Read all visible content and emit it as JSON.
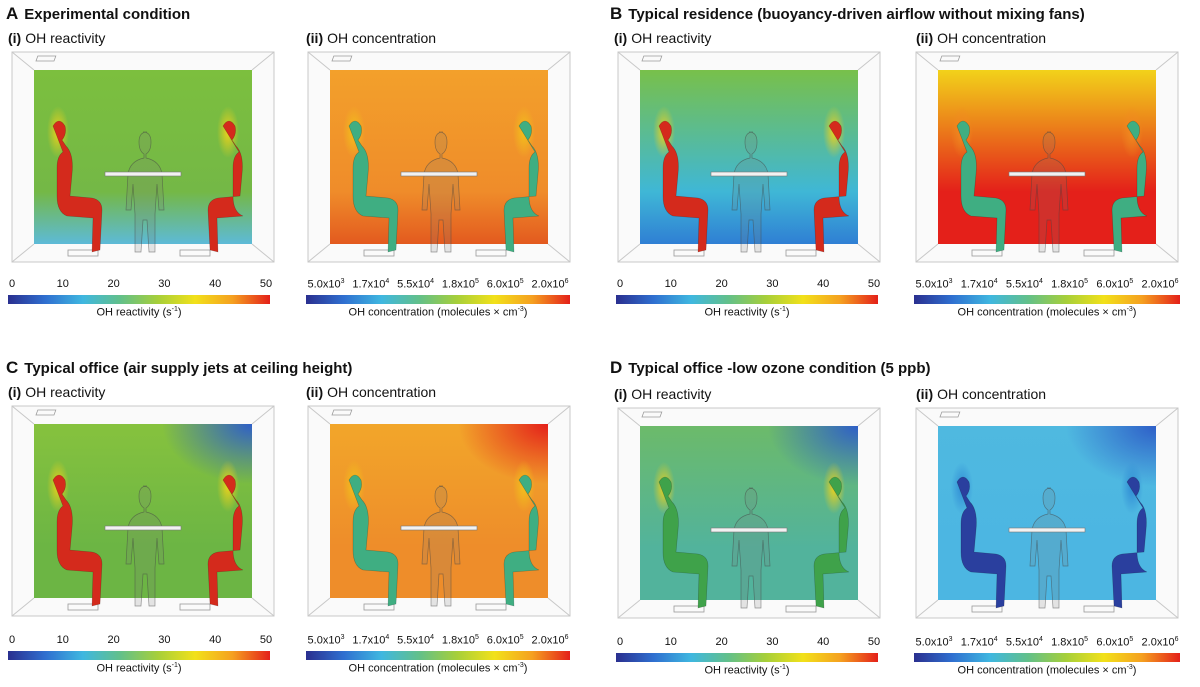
{
  "panels": [
    {
      "letter": "A",
      "title": "Experimental condition",
      "sub_i": "OH reactivity",
      "sub_ii": "OH concentration",
      "sub_i_num": "(i)",
      "sub_ii_num": "(ii)",
      "reactivity_room": {
        "bg_top": "#7cbf3e",
        "bg_bottom": "#74b846",
        "floor": "#5dbad8",
        "people": "#d42a1c",
        "plume": "#f2d21a",
        "corner": ""
      },
      "concentration_room": {
        "bg_top": "#f3a02b",
        "bg_bottom": "#ef8c2a",
        "floor": "#e35a1f",
        "people": "#3fae82",
        "plume": "#f2c21a",
        "corner": ""
      }
    },
    {
      "letter": "B",
      "title": "Typical residence (buoyancy-driven airflow without mixing fans)",
      "sub_i": "OH reactivity",
      "sub_ii": "OH concentration",
      "sub_i_num": "(i)",
      "sub_ii_num": "(ii)",
      "reactivity_room": {
        "bg_top": "#78c04a",
        "bg_bottom": "#3fb7d6",
        "floor": "#2f7fd4",
        "people": "#d42a1c",
        "plume": "#f2d21a",
        "corner": ""
      },
      "concentration_room": {
        "bg_top": "#f2d21a",
        "bg_bottom": "#e4201a",
        "floor": "#e4201a",
        "people": "#3fae82",
        "plume": "#f08a20",
        "corner": ""
      }
    },
    {
      "letter": "C",
      "title": "Typical office (air supply jets at ceiling height)",
      "sub_i": "OH reactivity",
      "sub_ii": "OH concentration",
      "sub_i_num": "(i)",
      "sub_ii_num": "(ii)",
      "reactivity_room": {
        "bg_top": "#86c23e",
        "bg_bottom": "#6cb544",
        "floor": "#6cb544",
        "people": "#d42a1c",
        "plume": "#f2d21a",
        "corner": "#2e5fc8"
      },
      "concentration_room": {
        "bg_top": "#f2a62a",
        "bg_bottom": "#ee8d2a",
        "floor": "#ee8d2a",
        "people": "#3fae82",
        "plume": "#f2c21a",
        "corner": "#e4201a"
      }
    },
    {
      "letter": "D",
      "title": "Typical office -low ozone condition (5 ppb)",
      "sub_i": "OH reactivity",
      "sub_ii": "OH concentration",
      "sub_i_num": "(i)",
      "sub_ii_num": "(ii)",
      "reactivity_room": {
        "bg_top": "#6cba6a",
        "bg_bottom": "#52b39c",
        "floor": "#52b39c",
        "people": "#3fa24a",
        "plume": "#f2d21a",
        "corner": "#2e5fc8"
      },
      "concentration_room": {
        "bg_top": "#4fb9e0",
        "bg_bottom": "#4cb6e2",
        "floor": "#4cb6e2",
        "people": "#2a3f9e",
        "plume": "#2f8ad4",
        "corner": "#2e5fc8"
      }
    }
  ],
  "scales": {
    "reactivity_ticks": [
      "0",
      "10",
      "20",
      "30",
      "40",
      "50"
    ],
    "reactivity_label": "OH reactivity (s",
    "reactivity_label_sup": "-1",
    "reactivity_label_end": ")",
    "concentration_ticks": [
      {
        "mant": "5.0x10",
        "exp": "3"
      },
      {
        "mant": "1.7x10",
        "exp": "4"
      },
      {
        "mant": "5.5x10",
        "exp": "4"
      },
      {
        "mant": "1.8x10",
        "exp": "5"
      },
      {
        "mant": "6.0x10",
        "exp": "5"
      },
      {
        "mant": "2.0x10",
        "exp": "6"
      }
    ],
    "concentration_label": "OH concentration (molecules × cm",
    "concentration_label_sup": "-3",
    "concentration_label_end": ")",
    "colormap": [
      "#2a2f8f",
      "#2f6fd0",
      "#3fb7e0",
      "#62c08a",
      "#a6cf3a",
      "#f2e11a",
      "#f5a020",
      "#e4201a"
    ]
  }
}
